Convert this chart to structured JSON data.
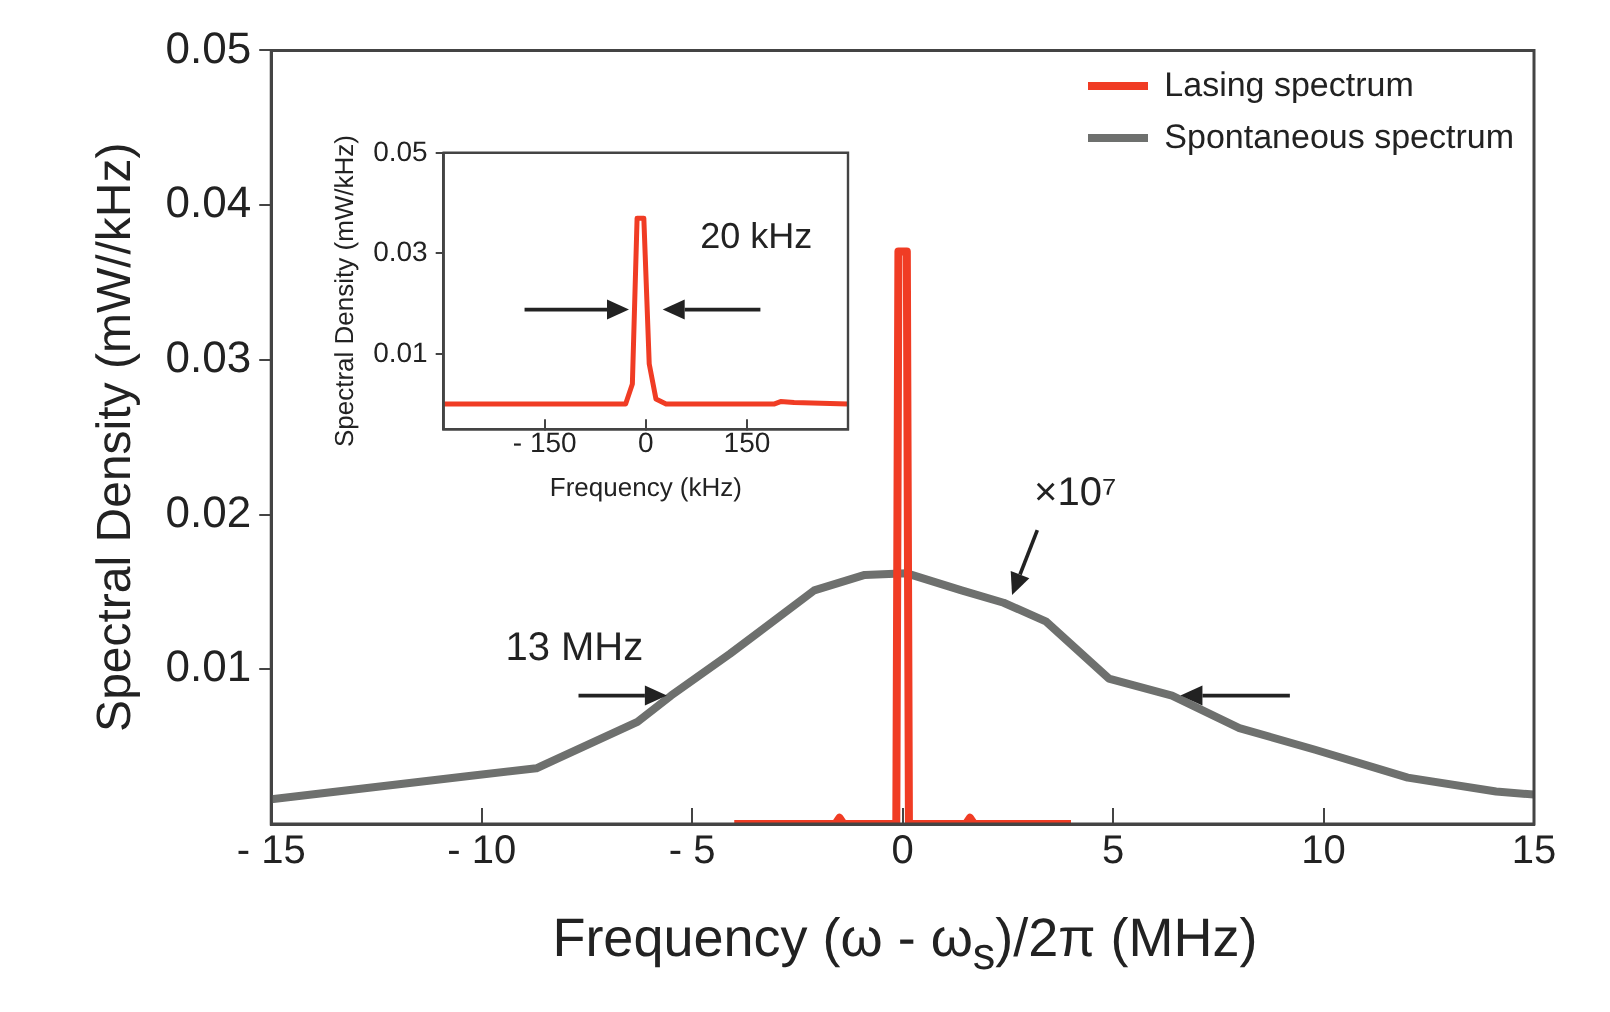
{
  "chart_data": [
    {
      "type": "line",
      "xlabel": "Frequency (ω - ω$_{s}$)/2π  (MHz)",
      "ylabel": "Spectral Density (mW//kHz)",
      "series": [
        {
          "name": "Lasing spectrum",
          "color": "#f03c24",
          "x": [
            -4,
            -1.6,
            -1.5,
            -1.4,
            -0.15,
            -0.1,
            0.1,
            0.15,
            1.5,
            1.6,
            1.7,
            4
          ],
          "values": [
            0,
            0,
            0.0004,
            0,
            0,
            0.037,
            0.037,
            0,
            0,
            0.0004,
            0,
            0
          ]
        },
        {
          "name": "Spontaneous spectrum",
          "color": "#6e706e",
          "x": [
            -15,
            -10.3,
            -8.7,
            -6.3,
            -5.5,
            -4.1,
            -2.1,
            -0.9,
            0.1,
            1.4,
            2.4,
            3.4,
            4.9,
            6.4,
            8,
            9.8,
            12,
            14.1,
            15
          ],
          "values": [
            0.0016,
            0.0031,
            0.0036,
            0.0066,
            0.0083,
            0.011,
            0.0151,
            0.0161,
            0.0162,
            0.0151,
            0.0143,
            0.0131,
            0.0094,
            0.0083,
            0.0062,
            0.0048,
            0.003,
            0.0021,
            0.0019
          ]
        }
      ],
      "xlim": [
        -15,
        15
      ],
      "xticks": [
        {
          "value": -15,
          "label": "- 15"
        },
        {
          "value": -10,
          "label": "- 10"
        },
        {
          "value": -5,
          "label": "- 5"
        },
        0,
        5,
        10,
        15
      ],
      "ylim": [
        0,
        0.05
      ],
      "yticks": [
        0.01,
        0.02,
        0.03,
        0.04,
        0.05
      ],
      "legend": "top right",
      "marker": "none",
      "grid": false,
      "annotations": [
        "13 MHz",
        "×10⁷"
      ]
    },
    {
      "type": "line",
      "xlabel": "Frequency (kHz)",
      "ylabel": "Spectral Density (mW/kHz)",
      "series": [
        {
          "color": "#f03c24",
          "x": [
            -300,
            -30,
            -20,
            -13,
            -3,
            5,
            15,
            30,
            190,
            200,
            220,
            300
          ],
          "values": [
            0,
            0,
            0.004,
            0.037,
            0.037,
            0.008,
            0.001,
            0,
            0,
            0.0005,
            0.0003,
            0
          ]
        }
      ],
      "xlim": [
        -300,
        300
      ],
      "xticks": [
        {
          "value": -150,
          "label": "- 150"
        },
        0,
        150
      ],
      "ylim": [
        -0.005,
        0.05
      ],
      "yticks": [
        0.01,
        0.03,
        0.05
      ],
      "marker": "none",
      "grid": false,
      "annotations": [
        "20 kHz"
      ]
    }
  ]
}
